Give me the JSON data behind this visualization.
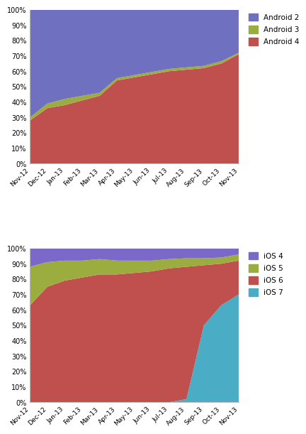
{
  "months_android": [
    "Nov-12",
    "Dec-12",
    "Jan-13",
    "Feb-13",
    "Mar-13",
    "Apr-13",
    "May-13",
    "Jun-13",
    "Jul-13",
    "Aug-13",
    "Sep-13",
    "Oct-13",
    "Nov-13"
  ],
  "android4": [
    28,
    36,
    38,
    41,
    44,
    54,
    56,
    58,
    60,
    61,
    62,
    65,
    71
  ],
  "android3": [
    2,
    3,
    4,
    3,
    2,
    1.5,
    1.5,
    1.5,
    1.5,
    1.5,
    1.5,
    1.5,
    1
  ],
  "android2": [
    70,
    61,
    58,
    56,
    54,
    44.5,
    42.5,
    40.5,
    38.5,
    37.5,
    36.5,
    33.5,
    28
  ],
  "android4_color": "#c0504d",
  "android3_color": "#9aad3e",
  "android2_color": "#7070c0",
  "months_ios": [
    "Nov-12",
    "Dec-12",
    "Jan-13",
    "Feb-13",
    "Mar-13",
    "Apr-13",
    "May-13",
    "Jun-13",
    "Jul-13",
    "Aug-13",
    "Sep-13",
    "Oct-13",
    "Nov-13"
  ],
  "ios7": [
    0,
    0,
    0,
    0,
    0,
    0,
    0,
    0,
    0,
    2,
    50,
    63,
    70
  ],
  "ios6": [
    63,
    75,
    79,
    81,
    83,
    83,
    84,
    85,
    87,
    86,
    39,
    27,
    22
  ],
  "ios5": [
    25,
    16,
    13,
    11,
    10,
    9,
    8,
    7,
    6,
    5.5,
    4.5,
    4,
    4
  ],
  "ios4": [
    12,
    9,
    8,
    8,
    7,
    8,
    8,
    8,
    7,
    6.5,
    6.5,
    6,
    4
  ],
  "ios7_color": "#4bacc6",
  "ios6_color": "#c0504d",
  "ios5_color": "#9aad3e",
  "ios4_color": "#7b68c8",
  "yticks": [
    0,
    10,
    20,
    30,
    40,
    50,
    60,
    70,
    80,
    90,
    100
  ],
  "ytick_labels": [
    "0%",
    "10%",
    "20%",
    "30%",
    "40%",
    "50%",
    "60%",
    "70%",
    "80%",
    "90%",
    "100%"
  ],
  "bg_color": "#ffffff"
}
